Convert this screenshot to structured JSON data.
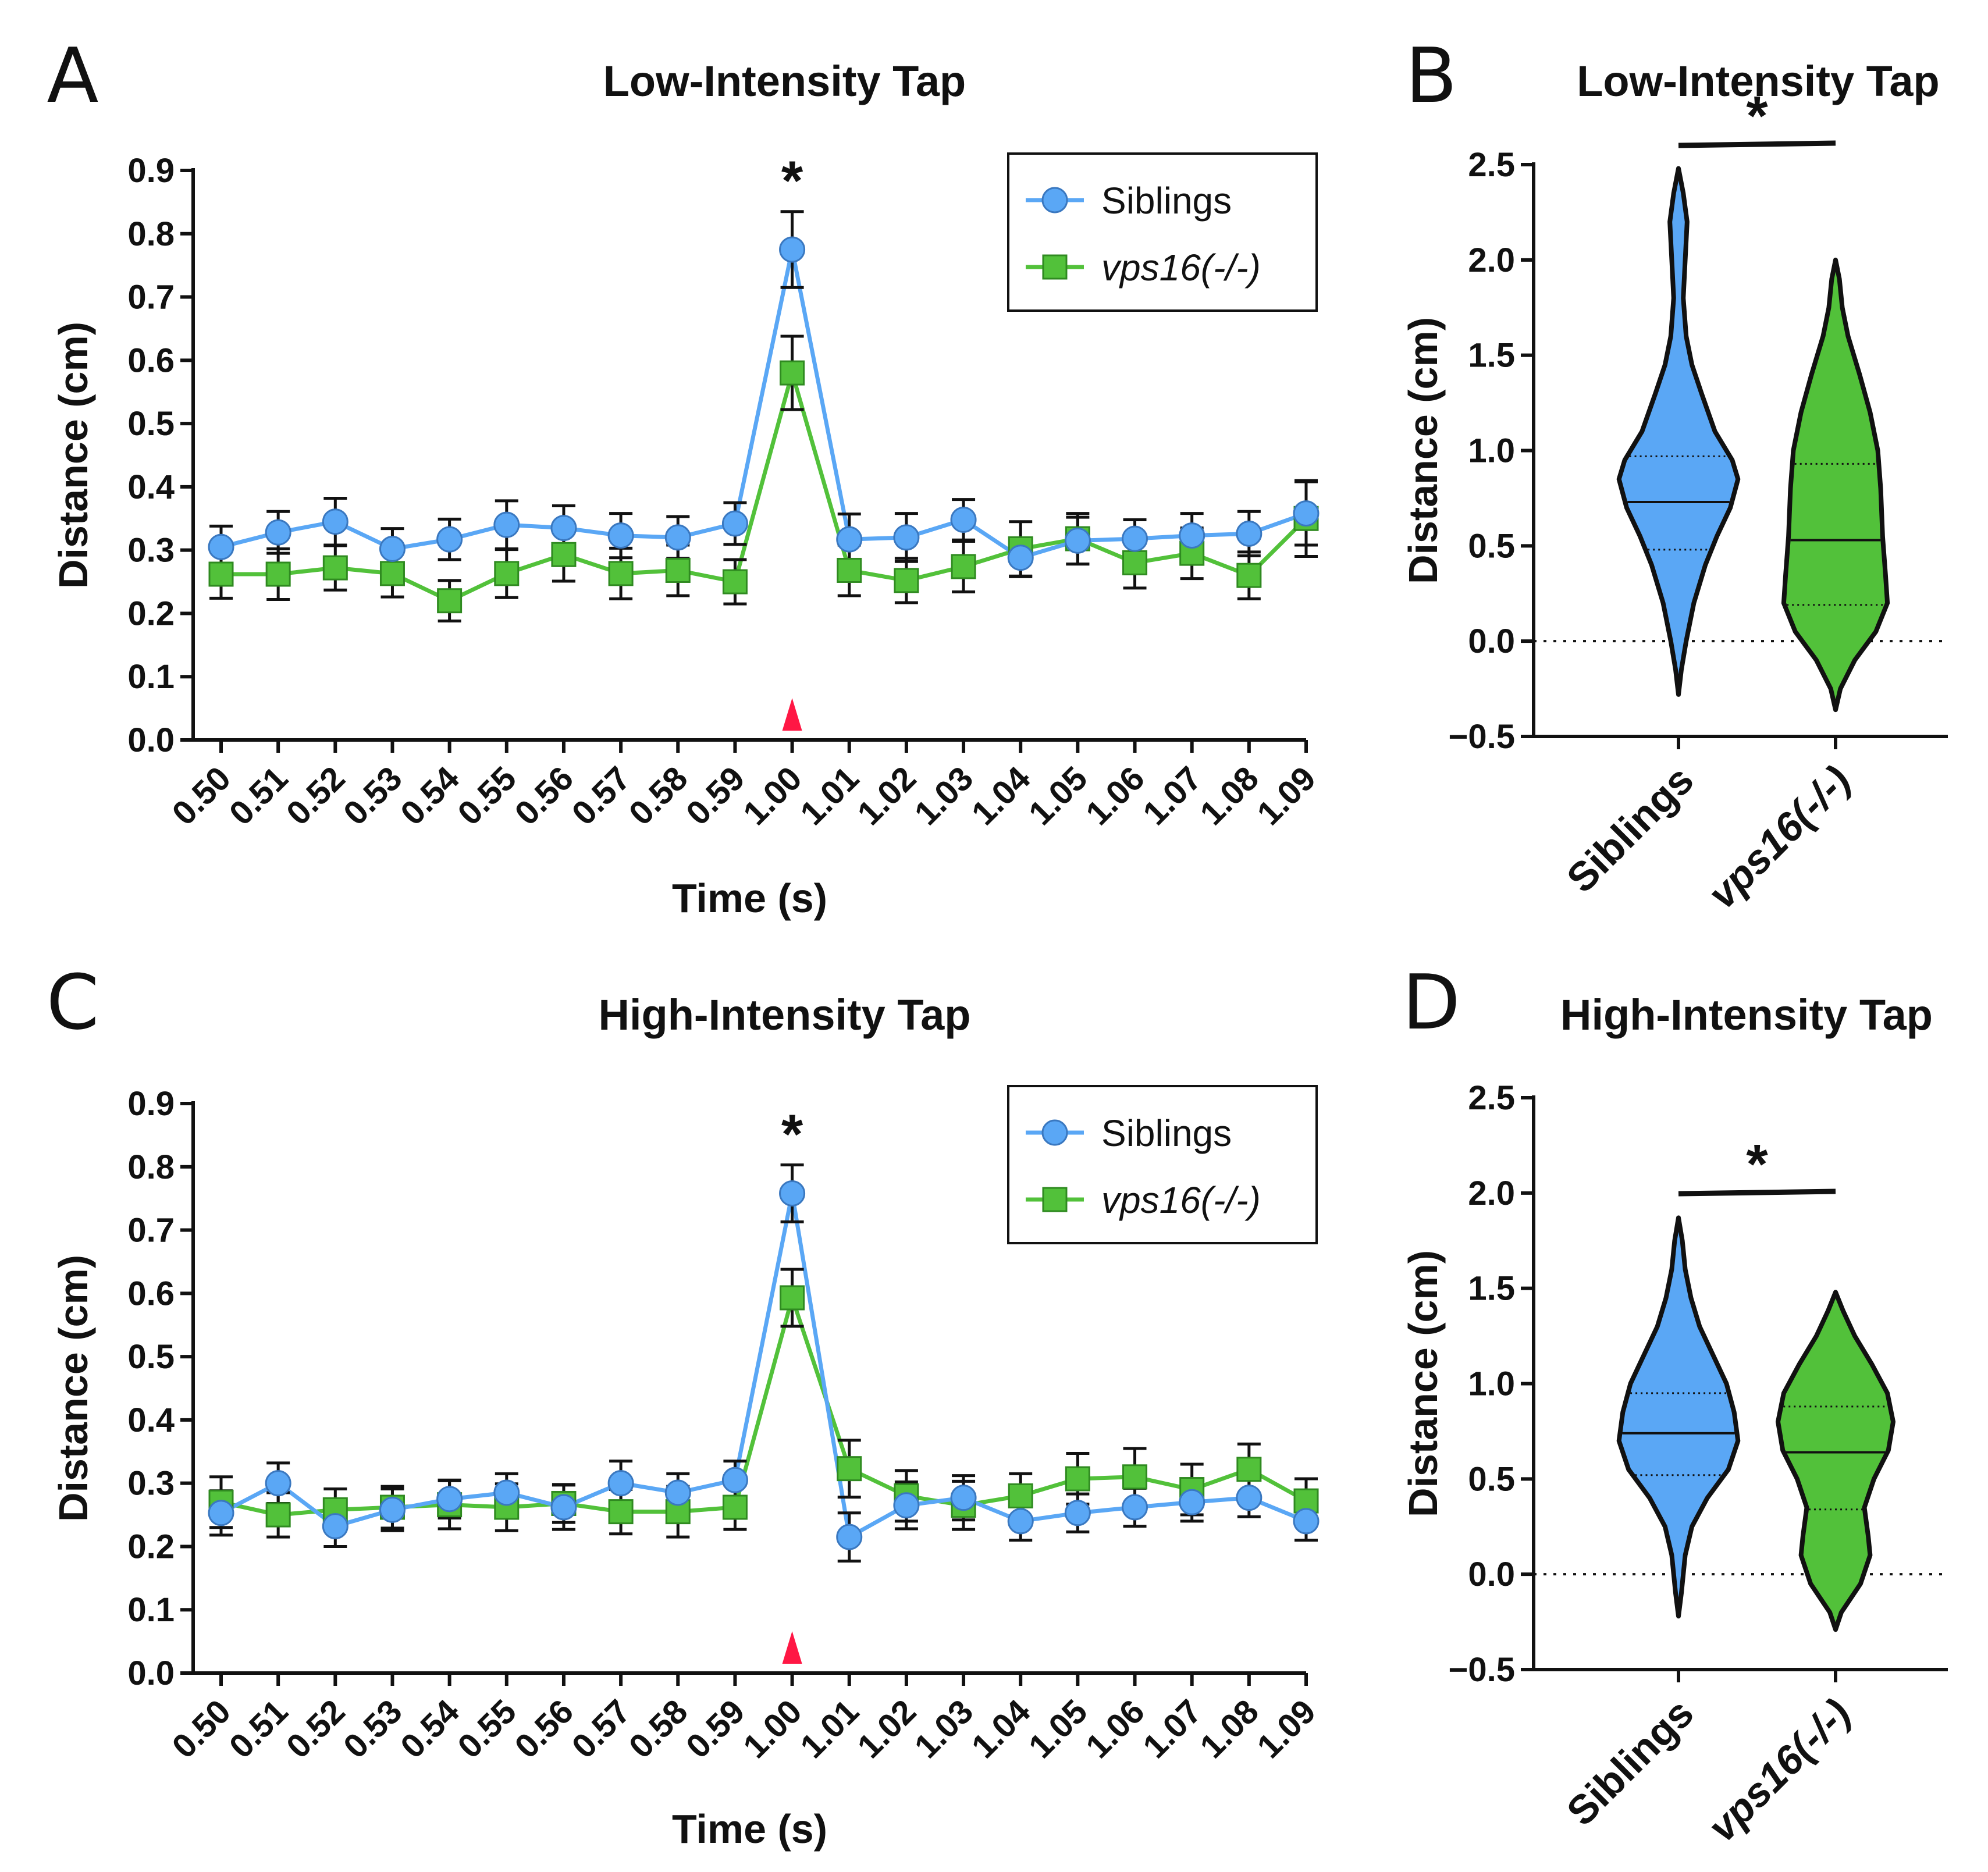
{
  "colors": {
    "siblings": "#5aa7f5",
    "mutant": "#52c13a",
    "stimulus": "#ff1744",
    "axis": "#111111"
  },
  "chart_data": [
    {
      "panel": "A",
      "type": "line",
      "title": "Low-Intensity Tap",
      "xlabel": "Time (s)",
      "ylabel": "Distance (cm)",
      "categories": [
        "0.50",
        "0.51",
        "0.52",
        "0.53",
        "0.54",
        "0.55",
        "0.56",
        "0.57",
        "0.58",
        "0.59",
        "1.00",
        "1.01",
        "1.02",
        "1.03",
        "1.04",
        "1.05",
        "1.06",
        "1.07",
        "1.08",
        "1.09"
      ],
      "ylim": [
        0,
        0.9
      ],
      "yticks": [
        "0.0",
        "0.1",
        "0.2",
        "0.3",
        "0.4",
        "0.5",
        "0.6",
        "0.7",
        "0.8",
        "0.9"
      ],
      "series": [
        {
          "name": "Siblings",
          "marker": "circle",
          "values": [
            0.305,
            0.328,
            0.345,
            0.302,
            0.317,
            0.34,
            0.335,
            0.323,
            0.32,
            0.342,
            0.775,
            0.317,
            0.32,
            0.348,
            0.288,
            0.315,
            0.318,
            0.323,
            0.326,
            0.358
          ],
          "errors": [
            0.033,
            0.033,
            0.037,
            0.032,
            0.032,
            0.038,
            0.035,
            0.035,
            0.033,
            0.033,
            0.06,
            0.04,
            0.038,
            0.032,
            0.03,
            0.037,
            0.03,
            0.035,
            0.035,
            0.05
          ]
        },
        {
          "name": "vps16(-/-)",
          "marker": "square",
          "values": [
            0.262,
            0.262,
            0.272,
            0.263,
            0.22,
            0.263,
            0.293,
            0.263,
            0.268,
            0.25,
            0.58,
            0.268,
            0.252,
            0.274,
            0.302,
            0.318,
            0.28,
            0.295,
            0.26,
            0.35
          ],
          "errors": [
            0.038,
            0.04,
            0.035,
            0.037,
            0.032,
            0.038,
            0.042,
            0.04,
            0.04,
            0.035,
            0.058,
            0.04,
            0.035,
            0.04,
            0.043,
            0.04,
            0.04,
            0.04,
            0.037,
            0.06
          ]
        }
      ],
      "significance": {
        "at": "1.00",
        "label": "*"
      },
      "stimulus_at": "1.00"
    },
    {
      "panel": "B",
      "type": "violin",
      "title": "Low-Intensity Tap",
      "ylabel": "Distance (cm)",
      "categories": [
        "Siblings",
        "vps16(-/-)"
      ],
      "ylim": [
        -0.5,
        2.5
      ],
      "yticks": [
        "−0.5",
        "0.0",
        "0.5",
        "1.0",
        "1.5",
        "2.0",
        "2.5"
      ],
      "groups": [
        {
          "name": "Siblings",
          "min": -0.28,
          "max": 2.48,
          "q1": 0.48,
          "median": 0.73,
          "q3": 0.97,
          "profile": [
            [
              -0.28,
              0
            ],
            [
              -0.15,
              0.03
            ],
            [
              0,
              0.08
            ],
            [
              0.2,
              0.16
            ],
            [
              0.4,
              0.28
            ],
            [
              0.55,
              0.4
            ],
            [
              0.7,
              0.54
            ],
            [
              0.85,
              0.62
            ],
            [
              0.95,
              0.56
            ],
            [
              1.1,
              0.38
            ],
            [
              1.3,
              0.24
            ],
            [
              1.45,
              0.14
            ],
            [
              1.6,
              0.08
            ],
            [
              1.8,
              0.05
            ],
            [
              2.0,
              0.07
            ],
            [
              2.2,
              0.09
            ],
            [
              2.35,
              0.05
            ],
            [
              2.48,
              0
            ]
          ]
        },
        {
          "name": "vps16(-/-)",
          "min": -0.36,
          "max": 2.0,
          "q1": 0.19,
          "median": 0.53,
          "q3": 0.93,
          "profile": [
            [
              -0.36,
              0
            ],
            [
              -0.25,
              0.05
            ],
            [
              -0.1,
              0.2
            ],
            [
              0.05,
              0.42
            ],
            [
              0.2,
              0.54
            ],
            [
              0.35,
              0.52
            ],
            [
              0.55,
              0.49
            ],
            [
              0.8,
              0.47
            ],
            [
              1.0,
              0.44
            ],
            [
              1.2,
              0.36
            ],
            [
              1.4,
              0.25
            ],
            [
              1.6,
              0.13
            ],
            [
              1.75,
              0.07
            ],
            [
              1.9,
              0.04
            ],
            [
              2.0,
              0
            ]
          ]
        }
      ],
      "significance": {
        "label": "*"
      }
    },
    {
      "panel": "C",
      "type": "line",
      "title": "High-Intensity Tap",
      "xlabel": "Time (s)",
      "ylabel": "Distance (cm)",
      "categories": [
        "0.50",
        "0.51",
        "0.52",
        "0.53",
        "0.54",
        "0.55",
        "0.56",
        "0.57",
        "0.58",
        "0.59",
        "1.00",
        "1.01",
        "1.02",
        "1.03",
        "1.04",
        "1.05",
        "1.06",
        "1.07",
        "1.08",
        "1.09"
      ],
      "ylim": [
        0,
        0.9
      ],
      "yticks": [
        "0.0",
        "0.1",
        "0.2",
        "0.3",
        "0.4",
        "0.5",
        "0.6",
        "0.7",
        "0.8",
        "0.9"
      ],
      "series": [
        {
          "name": "Siblings",
          "marker": "circle",
          "values": [
            0.253,
            0.3,
            0.232,
            0.258,
            0.275,
            0.285,
            0.262,
            0.3,
            0.285,
            0.305,
            0.758,
            0.215,
            0.265,
            0.277,
            0.24,
            0.253,
            0.262,
            0.27,
            0.277,
            0.24
          ],
          "errors": [
            0.035,
            0.032,
            0.032,
            0.033,
            0.03,
            0.03,
            0.035,
            0.035,
            0.03,
            0.03,
            0.045,
            0.038,
            0.037,
            0.035,
            0.03,
            0.03,
            0.03,
            0.03,
            0.03,
            0.03
          ]
        },
        {
          "name": "vps16(-/-)",
          "marker": "square",
          "values": [
            0.27,
            0.25,
            0.258,
            0.262,
            0.266,
            0.262,
            0.268,
            0.255,
            0.255,
            0.262,
            0.593,
            0.323,
            0.28,
            0.265,
            0.28,
            0.307,
            0.31,
            0.29,
            0.322,
            0.272
          ],
          "errors": [
            0.04,
            0.035,
            0.033,
            0.033,
            0.038,
            0.037,
            0.03,
            0.035,
            0.04,
            0.035,
            0.045,
            0.045,
            0.04,
            0.038,
            0.035,
            0.04,
            0.045,
            0.04,
            0.04,
            0.035
          ]
        }
      ],
      "significance": {
        "at": "1.00",
        "label": "*"
      },
      "stimulus_at": "1.00"
    },
    {
      "panel": "D",
      "type": "violin",
      "title": "High-Intensity Tap",
      "ylabel": "Distance (cm)",
      "categories": [
        "Siblings",
        "vps16(-/-)"
      ],
      "ylim": [
        -0.5,
        2.5
      ],
      "yticks": [
        "−0.5",
        "0.0",
        "0.5",
        "1.0",
        "1.5",
        "2.0",
        "2.5"
      ],
      "groups": [
        {
          "name": "Siblings",
          "min": -0.22,
          "max": 1.87,
          "q1": 0.52,
          "median": 0.74,
          "q3": 0.95,
          "profile": [
            [
              -0.22,
              0
            ],
            [
              -0.1,
              0.03
            ],
            [
              0.1,
              0.07
            ],
            [
              0.25,
              0.14
            ],
            [
              0.4,
              0.3
            ],
            [
              0.55,
              0.52
            ],
            [
              0.7,
              0.62
            ],
            [
              0.85,
              0.58
            ],
            [
              1.0,
              0.5
            ],
            [
              1.15,
              0.36
            ],
            [
              1.3,
              0.22
            ],
            [
              1.45,
              0.13
            ],
            [
              1.6,
              0.07
            ],
            [
              1.75,
              0.04
            ],
            [
              1.87,
              0
            ]
          ]
        },
        {
          "name": "vps16(-/-)",
          "min": -0.29,
          "max": 1.48,
          "q1": 0.34,
          "median": 0.64,
          "q3": 0.88,
          "profile": [
            [
              -0.29,
              0
            ],
            [
              -0.2,
              0.06
            ],
            [
              -0.05,
              0.26
            ],
            [
              0.1,
              0.36
            ],
            [
              0.2,
              0.34
            ],
            [
              0.35,
              0.3
            ],
            [
              0.5,
              0.4
            ],
            [
              0.65,
              0.55
            ],
            [
              0.8,
              0.6
            ],
            [
              0.95,
              0.54
            ],
            [
              1.1,
              0.38
            ],
            [
              1.25,
              0.2
            ],
            [
              1.38,
              0.08
            ],
            [
              1.48,
              0
            ]
          ]
        }
      ],
      "significance": {
        "label": "*"
      }
    }
  ]
}
